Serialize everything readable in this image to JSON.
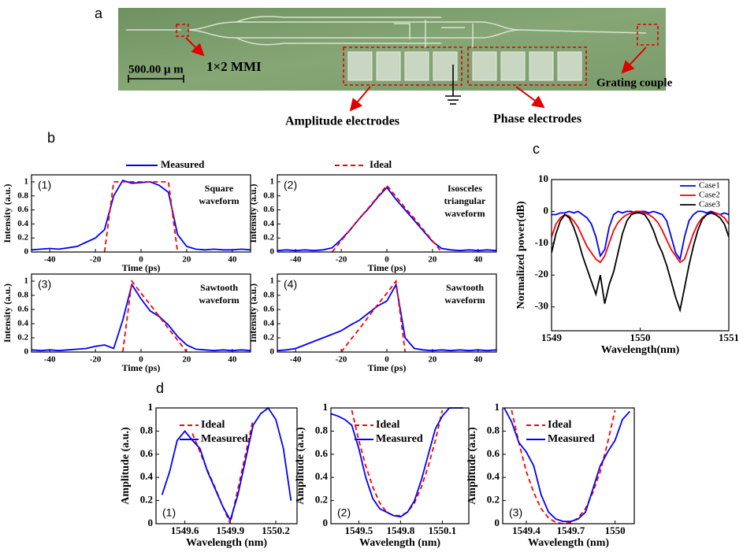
{
  "panel_labels": [
    "a",
    "b",
    "c",
    "d"
  ],
  "photo": {
    "scale_bar": "500.00 μ m",
    "mmi_label": "1×2 MMI",
    "grating_label": "Grating couple",
    "amplitude_label": "Amplitude electrodes",
    "phase_label": "Phase electrodes"
  },
  "chart_data": [
    {
      "type": "line",
      "label": "(1)",
      "annotation": [
        "Square",
        "waveform"
      ],
      "xlabel": "Time (ps)",
      "ylabel": "Intensity (a.u.)",
      "legend": "above",
      "xlim": [
        -48,
        48
      ],
      "ylim": [
        0,
        1.1
      ],
      "xticks": [
        -40,
        -20,
        0,
        20,
        40
      ],
      "yticks": [
        0,
        0.2,
        0.4,
        0.6,
        0.8,
        1
      ],
      "x": [
        -48,
        -44,
        -40,
        -36,
        -32,
        -28,
        -24,
        -20,
        -16,
        -12,
        -8,
        -4,
        0,
        4,
        8,
        12,
        16,
        20,
        24,
        28,
        32,
        36,
        40,
        44,
        48
      ],
      "series": [
        {
          "name": "Measured",
          "color": "#0000ff",
          "values": [
            0.03,
            0.04,
            0.05,
            0.04,
            0.06,
            0.08,
            0.14,
            0.2,
            0.32,
            0.8,
            1.02,
            0.98,
            0.99,
            1.0,
            0.95,
            0.85,
            0.25,
            0.08,
            0.04,
            0.03,
            0.04,
            0.03,
            0.03,
            0.04,
            0.03
          ]
        },
        {
          "name": "Ideal",
          "color": "#ff0000",
          "dashed": true,
          "values": [
            null,
            null,
            null,
            null,
            null,
            null,
            null,
            null,
            0,
            1,
            1,
            1,
            1,
            1,
            1,
            1,
            0,
            null,
            null,
            null,
            null,
            null,
            null,
            null,
            null
          ]
        }
      ]
    },
    {
      "type": "line",
      "label": "(2)",
      "annotation": [
        "Isosceles",
        "triangular",
        "waveform"
      ],
      "xlabel": "Time (ps)",
      "ylabel": "Intensity (a.u.)",
      "xlim": [
        -48,
        48
      ],
      "ylim": [
        0,
        1.1
      ],
      "xticks": [
        -40,
        -20,
        0,
        20,
        40
      ],
      "yticks": [
        0,
        0.2,
        0.4,
        0.6,
        0.8,
        1
      ],
      "x": [
        -48,
        -44,
        -40,
        -36,
        -32,
        -28,
        -24,
        -20,
        -16,
        -12,
        -8,
        -4,
        0,
        4,
        8,
        12,
        16,
        20,
        24,
        28,
        32,
        36,
        40,
        44,
        48
      ],
      "series": [
        {
          "color": "#0000ff",
          "values": [
            0.02,
            0.03,
            0.02,
            0.03,
            0.02,
            0.03,
            0.06,
            0.18,
            0.32,
            0.48,
            0.62,
            0.78,
            0.92,
            0.75,
            0.6,
            0.45,
            0.3,
            0.15,
            0.05,
            0.03,
            0.02,
            0.03,
            0.02,
            0.03,
            0.02
          ]
        },
        {
          "color": "#ff0000",
          "dashed": true,
          "values": [
            null,
            null,
            null,
            null,
            null,
            null,
            0,
            0.16,
            0.32,
            0.48,
            0.63,
            0.79,
            0.95,
            0.79,
            0.63,
            0.48,
            0.32,
            0.16,
            0,
            null,
            null,
            null,
            null,
            null,
            null
          ]
        }
      ]
    },
    {
      "type": "line",
      "label": "(3)",
      "annotation": [
        "Sawtooth",
        "waveform"
      ],
      "xlabel": "Time (ps)",
      "ylabel": "Intensity (a.u.)",
      "xlim": [
        -48,
        48
      ],
      "ylim": [
        0,
        1.1
      ],
      "xticks": [
        -40,
        -20,
        0,
        20,
        40
      ],
      "yticks": [
        0,
        0.2,
        0.4,
        0.6,
        0.8,
        1
      ],
      "x": [
        -48,
        -44,
        -40,
        -36,
        -32,
        -28,
        -24,
        -20,
        -16,
        -12,
        -8,
        -4,
        0,
        4,
        8,
        12,
        16,
        20,
        24,
        28,
        32,
        36,
        40,
        44,
        48
      ],
      "series": [
        {
          "color": "#0000ff",
          "values": [
            0.03,
            0.02,
            0.03,
            0.02,
            0.03,
            0.04,
            0.05,
            0.08,
            0.1,
            0.05,
            0.45,
            0.95,
            0.75,
            0.58,
            0.5,
            0.38,
            0.22,
            0.1,
            0.04,
            0.03,
            0.02,
            0.03,
            0.02,
            0.03,
            0.02
          ]
        },
        {
          "color": "#ff0000",
          "dashed": true,
          "values": [
            null,
            null,
            null,
            null,
            null,
            null,
            null,
            null,
            null,
            null,
            0,
            1,
            0.83,
            0.67,
            0.5,
            0.33,
            0.17,
            0,
            null,
            null,
            null,
            null,
            null,
            null,
            null
          ]
        }
      ]
    },
    {
      "type": "line",
      "label": "(4)",
      "annotation": [
        "Sawtooth",
        "waveform"
      ],
      "xlabel": "Time (ps)",
      "ylabel": "Intensity (a.u.)",
      "xlim": [
        -48,
        48
      ],
      "ylim": [
        0,
        1.1
      ],
      "xticks": [
        -40,
        -20,
        0,
        20,
        40
      ],
      "yticks": [
        0,
        0.2,
        0.4,
        0.6,
        0.8,
        1
      ],
      "x": [
        -48,
        -44,
        -40,
        -36,
        -32,
        -28,
        -24,
        -20,
        -16,
        -12,
        -8,
        -4,
        0,
        4,
        8,
        12,
        16,
        20,
        24,
        28,
        32,
        36,
        40,
        44,
        48
      ],
      "series": [
        {
          "color": "#0000ff",
          "values": [
            0.02,
            0.03,
            0.05,
            0.1,
            0.15,
            0.2,
            0.25,
            0.3,
            0.38,
            0.45,
            0.55,
            0.65,
            0.72,
            0.95,
            0.2,
            0.05,
            0.03,
            0.02,
            0.03,
            0.02,
            0.03,
            0.02,
            0.03,
            0.02,
            0.03
          ]
        },
        {
          "color": "#ff0000",
          "dashed": true,
          "values": [
            null,
            null,
            null,
            null,
            null,
            null,
            null,
            0,
            0.17,
            0.33,
            0.5,
            0.67,
            0.83,
            1,
            0,
            null,
            null,
            null,
            null,
            null,
            null,
            null,
            null,
            null,
            null
          ]
        }
      ]
    },
    {
      "type": "line",
      "xlabel": "Wavelength(nm)",
      "ylabel": "Normalized power(dB)",
      "legend": "upper right",
      "xlim": [
        1549,
        1551
      ],
      "ylim": [
        -37.5,
        10
      ],
      "xticks": [
        1549,
        1550,
        1551
      ],
      "yticks": [
        -30,
        -20,
        -10,
        0,
        10
      ],
      "x": [
        1549,
        1549.05,
        1549.1,
        1549.15,
        1549.2,
        1549.25,
        1549.3,
        1549.35,
        1549.4,
        1549.45,
        1549.5,
        1549.55,
        1549.6,
        1549.65,
        1549.7,
        1549.75,
        1549.8,
        1549.85,
        1549.9,
        1549.95,
        1550,
        1550.05,
        1550.1,
        1550.15,
        1550.2,
        1550.25,
        1550.3,
        1550.35,
        1550.4,
        1550.45,
        1550.5,
        1550.55,
        1550.6,
        1550.65,
        1550.7,
        1550.75,
        1550.8,
        1550.85,
        1550.9,
        1550.95,
        1551
      ],
      "series": [
        {
          "name": "Case1",
          "color": "#0000ff",
          "values": [
            -1,
            -1,
            -0.5,
            -0.5,
            0,
            -0.5,
            0,
            -1,
            -2,
            -4,
            -8,
            -14,
            -12,
            -5,
            -1,
            0,
            -0.5,
            0,
            0,
            -0.5,
            0,
            0,
            -0.5,
            0,
            -0.5,
            -1,
            -3,
            -8,
            -13,
            -15,
            -8,
            -3,
            -1,
            0,
            0,
            -0.5,
            0,
            -0.5,
            -1,
            -0.5,
            -1
          ]
        },
        {
          "name": "Case2",
          "color": "#ff0000",
          "values": [
            -8,
            -4,
            -2,
            -1,
            -1.5,
            -3,
            -5,
            -8,
            -11,
            -13,
            -15,
            -16,
            -14,
            -10,
            -6,
            -3.5,
            -2,
            -1,
            -0.5,
            0,
            0,
            -0.5,
            -1,
            -2,
            -3.5,
            -6,
            -9,
            -12,
            -14,
            -16,
            -15,
            -11,
            -7,
            -4,
            -2,
            -1,
            -0.5,
            -0.5,
            -1,
            -2,
            -4
          ]
        },
        {
          "name": "Case3",
          "color": "#000000",
          "values": [
            -13,
            -7,
            -3,
            -1,
            -2,
            -5,
            -9,
            -14,
            -18,
            -22,
            -26,
            -20,
            -29,
            -23,
            -19,
            -13,
            -7,
            -3,
            -1,
            -0.5,
            -0.5,
            -1,
            -3,
            -6,
            -10,
            -13,
            -17,
            -22,
            -27,
            -31,
            -24,
            -17,
            -11,
            -6,
            -2.5,
            -1,
            -0.5,
            -1,
            -2,
            -4,
            -8
          ]
        }
      ]
    },
    {
      "type": "line",
      "label": "(1)",
      "xlabel": "Wavelength (nm)",
      "ylabel": "Amplitude (a.u.)",
      "legend": "upper center",
      "xlim": [
        1549.41,
        1550.34
      ],
      "ylim": [
        0,
        1
      ],
      "xticks": [
        1549.6,
        1549.9,
        1550.2
      ],
      "yticks": [
        0,
        0.2,
        0.4,
        0.6,
        0.8,
        1
      ],
      "x": [
        1549.45,
        1549.5,
        1549.55,
        1549.6,
        1549.65,
        1549.7,
        1549.75,
        1549.8,
        1549.85,
        1549.9,
        1549.95,
        1550,
        1550.05,
        1550.1,
        1550.15,
        1550.2,
        1550.25,
        1550.3
      ],
      "series": [
        {
          "name": "Ideal",
          "color": "#ff0000",
          "dashed": true,
          "values": [
            null,
            null,
            null,
            null,
            0.78,
            0.62,
            0.46,
            0.31,
            0.15,
            0,
            0.3,
            0.6,
            0.9,
            null,
            null,
            null,
            null,
            null
          ]
        },
        {
          "name": "Measured",
          "color": "#0000ff",
          "values": [
            0.25,
            0.45,
            0.72,
            0.8,
            0.72,
            0.65,
            0.45,
            0.3,
            0.15,
            0.03,
            0.25,
            0.55,
            0.85,
            0.95,
            1.0,
            0.9,
            0.65,
            0.2
          ]
        }
      ]
    },
    {
      "type": "line",
      "label": "(2)",
      "xlabel": "Wavelength (nm)",
      "ylabel": "Amplitude (a.u.)",
      "legend": "upper center",
      "xlim": [
        1549.3,
        1550.29
      ],
      "ylim": [
        0,
        1
      ],
      "xticks": [
        1549.5,
        1549.8,
        1550.1
      ],
      "yticks": [
        0,
        0.2,
        0.4,
        0.6,
        0.8,
        1
      ],
      "x": [
        1549.3,
        1549.35,
        1549.4,
        1549.45,
        1549.5,
        1549.55,
        1549.6,
        1549.65,
        1549.7,
        1549.75,
        1549.8,
        1549.85,
        1549.9,
        1549.95,
        1550,
        1550.05,
        1550.1,
        1550.15,
        1550.2,
        1550.25
      ],
      "series": [
        {
          "name": "Ideal",
          "color": "#ff0000",
          "dashed": true,
          "values": [
            null,
            null,
            null,
            0.98,
            0.72,
            0.5,
            0.32,
            0.18,
            0.1,
            0.07,
            0.07,
            0.1,
            0.18,
            0.32,
            0.5,
            0.72,
            0.98,
            null,
            null,
            null
          ]
        },
        {
          "name": "Measured",
          "color": "#0000ff",
          "values": [
            0.95,
            0.93,
            0.9,
            0.85,
            0.65,
            0.4,
            0.22,
            0.13,
            0.1,
            0.07,
            0.06,
            0.1,
            0.2,
            0.38,
            0.6,
            0.82,
            0.93,
            1.0,
            1.0,
            1.0
          ]
        }
      ]
    },
    {
      "type": "line",
      "label": "(3)",
      "xlabel": "Wavelength (nm)",
      "ylabel": "Amplitude (a.u.)",
      "legend": "upper center",
      "xlim": [
        1549.24,
        1550.13
      ],
      "ylim": [
        0,
        1
      ],
      "xticks": [
        1549.4,
        1549.7,
        1550
      ],
      "yticks": [
        0,
        0.2,
        0.4,
        0.6,
        0.8,
        1
      ],
      "x": [
        1549.25,
        1549.3,
        1549.35,
        1549.4,
        1549.45,
        1549.5,
        1549.55,
        1549.6,
        1549.65,
        1549.7,
        1549.75,
        1549.8,
        1549.85,
        1549.9,
        1549.95,
        1550,
        1550.05,
        1550.1
      ],
      "series": [
        {
          "name": "Ideal",
          "color": "#ff0000",
          "dashed": true,
          "values": [
            null,
            0.98,
            0.7,
            0.45,
            0.27,
            0.13,
            0.05,
            0.01,
            0,
            0.01,
            0.05,
            0.13,
            0.27,
            0.45,
            0.7,
            0.98,
            null,
            null
          ]
        },
        {
          "name": "Measured",
          "color": "#0000ff",
          "values": [
            1.0,
            0.88,
            0.7,
            0.62,
            0.5,
            0.25,
            0.1,
            0.04,
            0.02,
            0.02,
            0.04,
            0.1,
            0.3,
            0.5,
            0.62,
            0.72,
            0.9,
            0.97
          ]
        }
      ]
    }
  ]
}
